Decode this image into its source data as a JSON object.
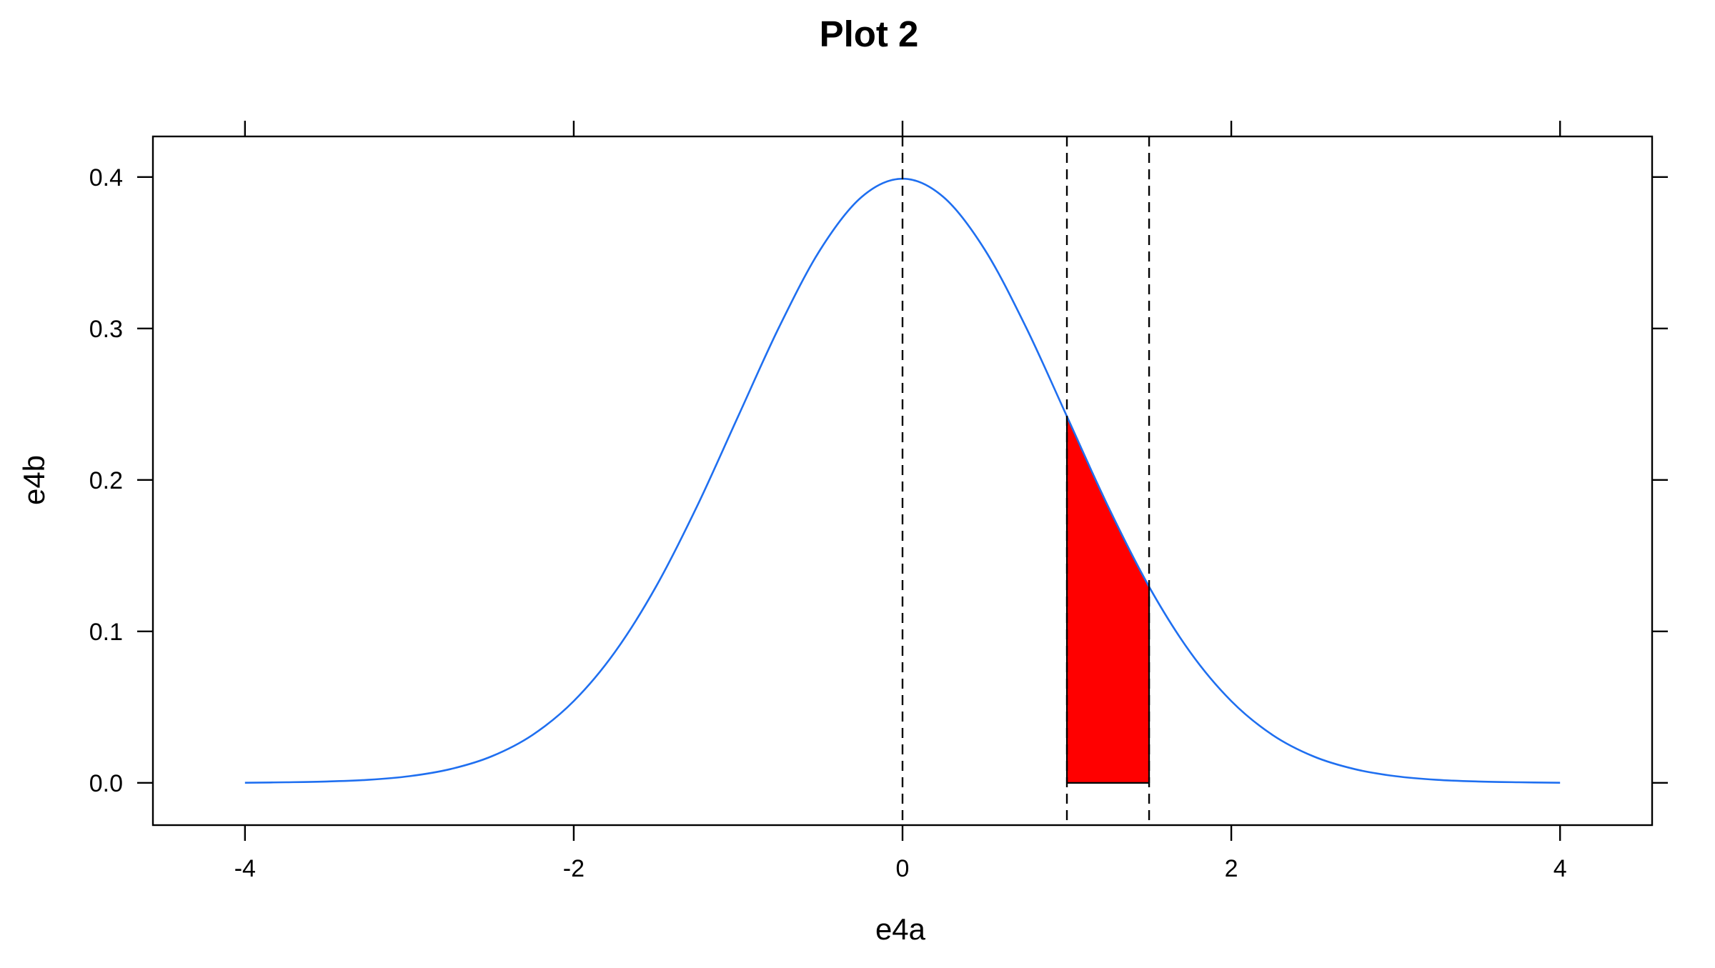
{
  "chart_data": {
    "type": "line",
    "title": "Plot 2",
    "xlabel": "e4a",
    "ylabel": "e4b",
    "xlim": [
      -4.56,
      4.56
    ],
    "ylim": [
      -0.0279,
      0.4268
    ],
    "x_ticks": [
      -4,
      -2,
      0,
      2,
      4
    ],
    "x_tick_labels": [
      "-4",
      "-2",
      "0",
      "2",
      "4"
    ],
    "y_ticks": [
      0.0,
      0.1,
      0.2,
      0.3,
      0.4
    ],
    "y_tick_labels": [
      "0.0",
      "0.1",
      "0.2",
      "0.3",
      "0.4"
    ],
    "grid": false,
    "legend": "none",
    "series": [
      {
        "color": "#1f6ff0",
        "x": [
          -4.0,
          -3.75,
          -3.5,
          -3.25,
          -3.0,
          -2.75,
          -2.5,
          -2.25,
          -2.0,
          -1.75,
          -1.5,
          -1.25,
          -1.0,
          -0.75,
          -0.5,
          -0.25,
          0.0,
          0.25,
          0.5,
          0.75,
          1.0,
          1.25,
          1.5,
          1.75,
          2.0,
          2.25,
          2.5,
          2.75,
          3.0,
          3.25,
          3.5,
          3.75,
          4.0
        ],
        "y": [
          0.0001,
          0.0004,
          0.0009,
          0.002,
          0.0044,
          0.0091,
          0.0175,
          0.0317,
          0.054,
          0.0863,
          0.1295,
          0.1826,
          0.242,
          0.3011,
          0.3521,
          0.3867,
          0.3989,
          0.3867,
          0.3521,
          0.3011,
          0.242,
          0.1826,
          0.1295,
          0.0863,
          0.054,
          0.0317,
          0.0175,
          0.0091,
          0.0044,
          0.002,
          0.0009,
          0.0004,
          0.0001
        ]
      }
    ],
    "vertical_lines": [
      {
        "x": 0.0,
        "style": "dashed",
        "color": "#000000"
      },
      {
        "x": 1.0,
        "style": "dashed",
        "color": "#000000"
      },
      {
        "x": 1.5,
        "style": "dashed",
        "color": "#000000"
      }
    ],
    "shaded_region": {
      "x_from": 1.0,
      "x_to": 1.5,
      "fill": "#ff0000",
      "stroke": "#000000",
      "x": [
        1.0,
        1.05,
        1.1,
        1.15,
        1.2,
        1.25,
        1.3,
        1.35,
        1.4,
        1.45,
        1.5
      ],
      "y": [
        0.242,
        0.2299,
        0.2179,
        0.2059,
        0.1942,
        0.1826,
        0.1714,
        0.1604,
        0.1497,
        0.1394,
        0.1295
      ]
    }
  }
}
